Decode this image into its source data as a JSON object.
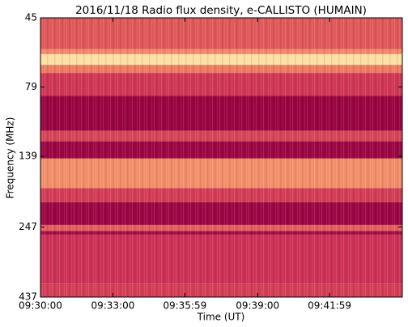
{
  "chart_data": {
    "type": "spectrogram",
    "title": "2016/11/18  Radio flux density, e-CALLISTO (HUMAIN)",
    "x_label": "Time (UT)",
    "y_label": "Frequency (MHz)",
    "xlim": [
      "09:30:00",
      "09:45:00"
    ],
    "xticks": [
      "09:30:00",
      "09:33:00",
      "09:35:59",
      "09:39:00",
      "09:41:59"
    ],
    "ylim": [
      45,
      437
    ],
    "yticks": [
      45,
      79,
      139,
      247,
      437
    ],
    "y_log": true,
    "y_inverted": true,
    "colormap": [
      "#93003f",
      "#c92a55",
      "#eb6d5c",
      "#f9b479",
      "#fff4b8"
    ],
    "bands": [
      {
        "from": 45,
        "to": 58,
        "level": 0.42
      },
      {
        "from": 58,
        "to": 60.5,
        "level": 0.6
      },
      {
        "from": 60.5,
        "to": 66,
        "level": 0.92
      },
      {
        "from": 66,
        "to": 70.5,
        "level": 0.55
      },
      {
        "from": 70.5,
        "to": 85,
        "level": 0.3
      },
      {
        "from": 85,
        "to": 113,
        "level": 0.03
      },
      {
        "from": 113,
        "to": 123,
        "level": 0.35
      },
      {
        "from": 123,
        "to": 141.5,
        "level": 0.04
      },
      {
        "from": 141.5,
        "to": 180,
        "level": 0.62
      },
      {
        "from": 180,
        "to": 202,
        "level": 0.32
      },
      {
        "from": 202,
        "to": 243,
        "level": 0.04
      },
      {
        "from": 243,
        "to": 255,
        "level": 0.45
      },
      {
        "from": 255,
        "to": 263,
        "level": 0.08
      },
      {
        "from": 263,
        "to": 391,
        "level": 0.28
      },
      {
        "from": 391,
        "to": 437,
        "level": 0.33
      }
    ]
  }
}
